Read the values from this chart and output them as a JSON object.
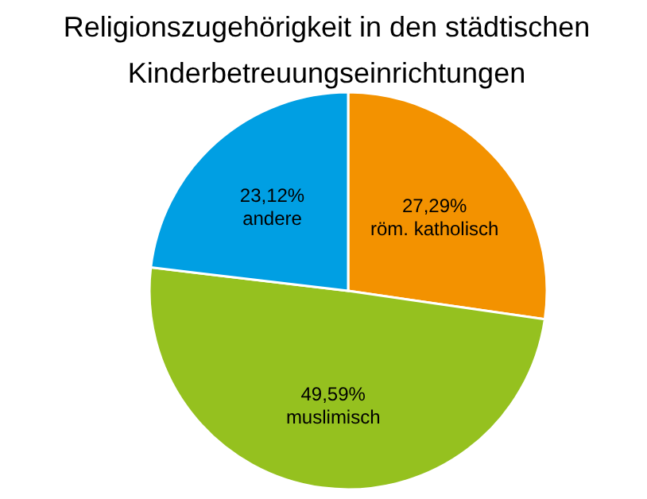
{
  "chart_data": {
    "type": "pie",
    "title": "Religionszugehörigkeit in den städtischen Kinderbetreuungseinrichtungen",
    "categories": [
      "röm. katholisch",
      "muslimisch",
      "andere"
    ],
    "values": [
      27.29,
      49.59,
      23.12
    ],
    "colors": [
      "#f39200",
      "#95c11f",
      "#009fe3"
    ],
    "value_labels": [
      "27,29%",
      "49,59%",
      "23,12%"
    ]
  }
}
